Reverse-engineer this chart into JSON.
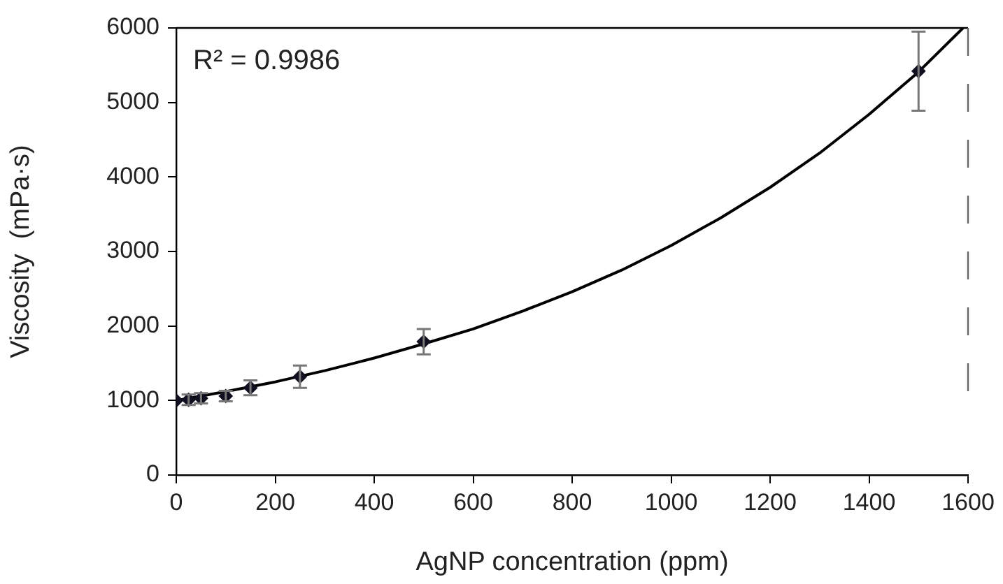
{
  "chart_data": {
    "type": "scatter",
    "xlabel": "AgNP concentration (ppm)",
    "ylabel": "Viscosity  (mPa·s)",
    "annotations": [
      "R² = 0.9986"
    ],
    "xlim": [
      0,
      1600
    ],
    "xticks": [
      0,
      200,
      400,
      600,
      800,
      1000,
      1200,
      1400,
      1600
    ],
    "ylim": [
      0,
      6000
    ],
    "yticks": [
      0,
      1000,
      2000,
      3000,
      4000,
      5000,
      6000
    ],
    "marker": "diamond",
    "grid": false,
    "legend": false,
    "series": [
      {
        "type": "scatter",
        "color": "#101020",
        "x": [
          0,
          25,
          50,
          100,
          150,
          250,
          500,
          1500
        ],
        "values": [
          1000,
          1010,
          1030,
          1060,
          1170,
          1320,
          1790,
          5420
        ],
        "errors": [
          null,
          70,
          70,
          70,
          100,
          150,
          170,
          530
        ]
      },
      {
        "type": "line",
        "color": "#000000",
        "marker": "none",
        "x": [
          0,
          100,
          200,
          300,
          400,
          500,
          600,
          700,
          800,
          900,
          1000,
          1100,
          1200,
          1300,
          1400,
          1500,
          1590
        ],
        "values": [
          1000,
          1120,
          1250,
          1400,
          1570,
          1760,
          1960,
          2200,
          2460,
          2750,
          3080,
          3450,
          3860,
          4320,
          4840,
          5410,
          6000
        ]
      }
    ]
  }
}
